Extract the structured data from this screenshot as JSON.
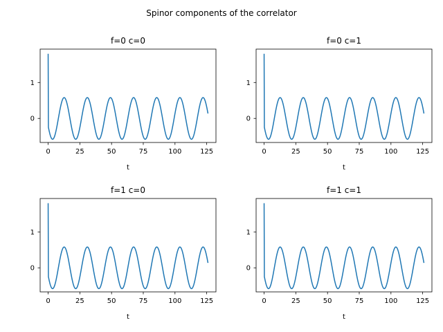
{
  "figure": {
    "suptitle": "Spinor components of the correlator",
    "background": "#ffffff"
  },
  "chart_data": [
    {
      "type": "line",
      "title": "f=0 c=0",
      "xlabel": "t",
      "ylabel": "",
      "xlim": [
        -6.3,
        132.3
      ],
      "ylim": [
        -0.67,
        1.93
      ],
      "xticks": [
        0,
        25,
        50,
        75,
        100,
        125
      ],
      "yticks": [
        0,
        1
      ],
      "grid": false,
      "series": [
        {
          "color": "#1f77b4",
          "x_start": 0,
          "x_end": 126,
          "y_first": 1.8,
          "oscillation": {
            "amplitude": 0.58,
            "period": 18.25,
            "offset": 0.0,
            "phase_min_at": 3.5
          },
          "y_last": 0.28
        }
      ]
    },
    {
      "type": "line",
      "title": "f=0 c=1",
      "xlabel": "t",
      "ylabel": "",
      "xlim": [
        -6.3,
        132.3
      ],
      "ylim": [
        -0.67,
        1.93
      ],
      "xticks": [
        0,
        25,
        50,
        75,
        100,
        125
      ],
      "yticks": [
        0,
        1
      ],
      "grid": false,
      "series": [
        {
          "color": "#1f77b4",
          "x_start": 0,
          "x_end": 126,
          "y_first": 1.8,
          "oscillation": {
            "amplitude": 0.58,
            "period": 18.25,
            "offset": 0.0,
            "phase_min_at": 3.5
          },
          "y_last": 0.28
        }
      ]
    },
    {
      "type": "line",
      "title": "f=1 c=0",
      "xlabel": "t",
      "ylabel": "",
      "xlim": [
        -6.3,
        132.3
      ],
      "ylim": [
        -0.67,
        1.93
      ],
      "xticks": [
        0,
        25,
        50,
        75,
        100,
        125
      ],
      "yticks": [
        0,
        1
      ],
      "grid": false,
      "series": [
        {
          "color": "#1f77b4",
          "x_start": 0,
          "x_end": 126,
          "y_first": 1.8,
          "oscillation": {
            "amplitude": 0.58,
            "period": 18.25,
            "offset": 0.0,
            "phase_min_at": 3.5
          },
          "y_last": 0.28
        }
      ]
    },
    {
      "type": "line",
      "title": "f=1 c=1",
      "xlabel": "t",
      "ylabel": "",
      "xlim": [
        -6.3,
        132.3
      ],
      "ylim": [
        -0.67,
        1.93
      ],
      "xticks": [
        0,
        25,
        50,
        75,
        100,
        125
      ],
      "yticks": [
        0,
        1
      ],
      "grid": false,
      "series": [
        {
          "color": "#1f77b4",
          "x_start": 0,
          "x_end": 126,
          "y_first": 1.8,
          "oscillation": {
            "amplitude": 0.58,
            "period": 18.25,
            "offset": 0.0,
            "phase_min_at": 3.5
          },
          "y_last": 0.28
        }
      ]
    }
  ]
}
